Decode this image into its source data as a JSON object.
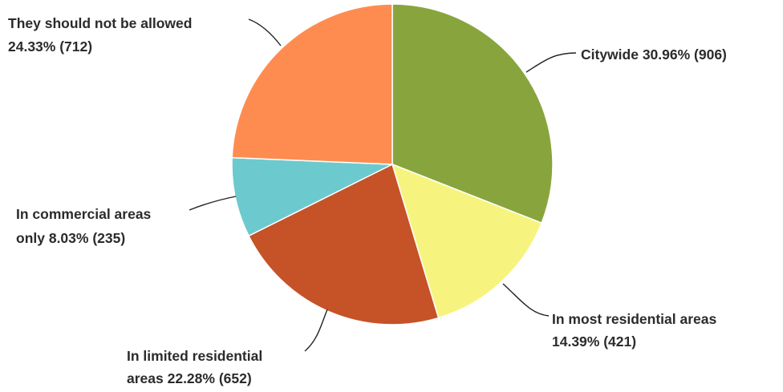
{
  "chart_data": {
    "type": "pie",
    "title": "",
    "start_angle_deg": 0,
    "direction": "clockwise",
    "slices": [
      {
        "key": "citywide",
        "name": "Citywide",
        "percent": 30.96,
        "count": 906,
        "color": "#88a53d",
        "label_lines": [
          "Citywide 30.96% (906)"
        ]
      },
      {
        "key": "most_residential",
        "name": "In most residential areas",
        "percent": 14.39,
        "count": 421,
        "color": "#f6f47f",
        "label_lines": [
          "In most residential areas",
          "14.39% (421)"
        ]
      },
      {
        "key": "limited_residential",
        "name": "In limited residential areas",
        "percent": 22.28,
        "count": 652,
        "color": "#c65227",
        "label_lines": [
          "In limited residential",
          "areas 22.28% (652)"
        ]
      },
      {
        "key": "commercial_only",
        "name": "In commercial areas only",
        "percent": 8.03,
        "count": 235,
        "color": "#6ccace",
        "label_lines": [
          "In commercial areas",
          "only 8.03% (235)"
        ]
      },
      {
        "key": "not_allowed",
        "name": "They should not be allowed",
        "percent": 24.33,
        "count": 712,
        "color": "#fe8c50",
        "label_lines": [
          "They should not be allowed",
          "24.33% (712)"
        ]
      }
    ]
  }
}
